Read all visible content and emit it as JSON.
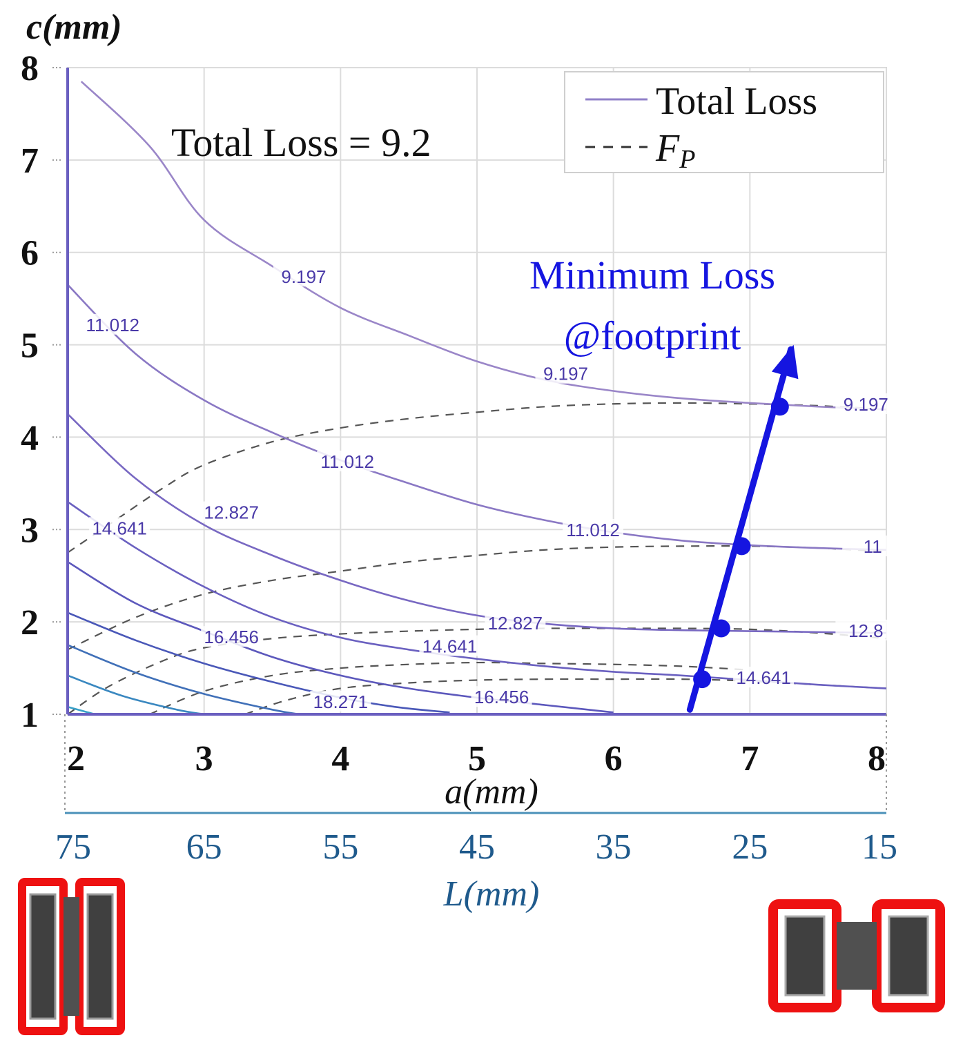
{
  "chart_data": {
    "type": "line",
    "title": "",
    "xlabel": "a(mm)",
    "ylabel": "c(mm)",
    "xlim": [
      2,
      8
    ],
    "ylim": [
      1,
      8
    ],
    "xticks": [
      "2",
      "3",
      "4",
      "5",
      "6",
      "7",
      "8"
    ],
    "yticks": [
      "1",
      "2",
      "3",
      "4",
      "5",
      "6",
      "7",
      "8"
    ],
    "secondary_xaxis": {
      "label": "L(mm)",
      "ticks": [
        "75",
        "65",
        "55",
        "45",
        "35",
        "25",
        "15"
      ]
    },
    "grid": true,
    "legend": {
      "position": "top-right",
      "entries": [
        {
          "label": "Total Loss",
          "style": "solid",
          "color": "#9080c8"
        },
        {
          "label": "F",
          "subscript": "P",
          "style": "dashed",
          "color": "#444444"
        }
      ]
    },
    "annotation": "Total Loss = 9.2",
    "highlight": {
      "line1": "Minimum Loss",
      "line2": "@footprint",
      "color": "#1515e0",
      "points": [
        {
          "x": 6.65,
          "y": 1.38,
          "label": "14.641"
        },
        {
          "x": 6.79,
          "y": 1.93,
          "label": "12.8"
        },
        {
          "x": 6.94,
          "y": 2.82,
          "label": "11"
        },
        {
          "x": 7.22,
          "y": 4.33,
          "label": "9.197"
        }
      ]
    },
    "contours": [
      {
        "level": "9.197",
        "color": "#9a86c8",
        "points": [
          [
            2.1,
            7.85
          ],
          [
            2.6,
            7.15
          ],
          [
            3.0,
            6.35
          ],
          [
            3.5,
            5.85
          ],
          [
            4.0,
            5.4
          ],
          [
            4.5,
            5.1
          ],
          [
            5.0,
            4.82
          ],
          [
            5.5,
            4.62
          ],
          [
            6.0,
            4.5
          ],
          [
            6.5,
            4.42
          ],
          [
            7.0,
            4.37
          ],
          [
            7.5,
            4.33
          ],
          [
            8.0,
            4.3
          ]
        ],
        "labels": [
          {
            "x": 3.73,
            "y": 5.72,
            "text": "9.197"
          },
          {
            "x": 5.65,
            "y": 4.67,
            "text": "9.197"
          },
          {
            "x": 7.85,
            "y": 4.34,
            "text": "9.197"
          }
        ]
      },
      {
        "level": "11.012",
        "color": "#8a78c4",
        "points": [
          [
            2.0,
            5.65
          ],
          [
            2.5,
            4.9
          ],
          [
            3.0,
            4.4
          ],
          [
            3.5,
            4.05
          ],
          [
            4.0,
            3.75
          ],
          [
            4.5,
            3.5
          ],
          [
            5.0,
            3.27
          ],
          [
            5.5,
            3.1
          ],
          [
            6.0,
            2.97
          ],
          [
            6.5,
            2.88
          ],
          [
            7.0,
            2.83
          ],
          [
            7.5,
            2.8
          ],
          [
            8.0,
            2.78
          ]
        ],
        "labels": [
          {
            "x": 2.33,
            "y": 5.2,
            "text": "11.012"
          },
          {
            "x": 4.05,
            "y": 3.72,
            "text": "11.012"
          },
          {
            "x": 5.85,
            "y": 2.98,
            "text": "11.012"
          },
          {
            "x": 7.9,
            "y": 2.8,
            "text": "11"
          }
        ]
      },
      {
        "level": "12.827",
        "color": "#7868c2",
        "points": [
          [
            2.0,
            4.25
          ],
          [
            2.5,
            3.55
          ],
          [
            3.0,
            3.05
          ],
          [
            3.5,
            2.72
          ],
          [
            4.0,
            2.45
          ],
          [
            4.5,
            2.23
          ],
          [
            5.0,
            2.07
          ],
          [
            5.5,
            1.98
          ],
          [
            6.0,
            1.93
          ],
          [
            6.5,
            1.91
          ],
          [
            7.0,
            1.9
          ],
          [
            7.5,
            1.89
          ],
          [
            8.0,
            1.88
          ]
        ],
        "labels": [
          {
            "x": 3.2,
            "y": 3.17,
            "text": "12.827"
          },
          {
            "x": 5.28,
            "y": 1.97,
            "text": "12.827"
          },
          {
            "x": 7.85,
            "y": 1.89,
            "text": "12.8"
          }
        ]
      },
      {
        "level": "14.641",
        "color": "#6a60c0",
        "points": [
          [
            2.0,
            3.3
          ],
          [
            2.5,
            2.8
          ],
          [
            3.0,
            2.38
          ],
          [
            3.5,
            2.05
          ],
          [
            4.0,
            1.83
          ],
          [
            4.5,
            1.7
          ],
          [
            5.0,
            1.6
          ],
          [
            5.5,
            1.52
          ],
          [
            6.0,
            1.46
          ],
          [
            6.5,
            1.42
          ],
          [
            7.0,
            1.37
          ],
          [
            7.5,
            1.32
          ],
          [
            8.0,
            1.28
          ]
        ],
        "labels": [
          {
            "x": 2.38,
            "y": 3.0,
            "text": "14.641"
          },
          {
            "x": 4.8,
            "y": 1.72,
            "text": "14.641"
          },
          {
            "x": 7.1,
            "y": 1.38,
            "text": "14.641"
          }
        ]
      },
      {
        "level": "16.456",
        "color": "#5c58bc",
        "points": [
          [
            2.0,
            2.65
          ],
          [
            2.5,
            2.2
          ],
          [
            3.0,
            1.9
          ],
          [
            3.5,
            1.62
          ],
          [
            4.0,
            1.42
          ],
          [
            4.5,
            1.28
          ],
          [
            5.0,
            1.18
          ],
          [
            5.5,
            1.1
          ],
          [
            6.0,
            1.02
          ]
        ],
        "labels": [
          {
            "x": 3.2,
            "y": 1.82,
            "text": "16.456"
          },
          {
            "x": 5.18,
            "y": 1.17,
            "text": "16.456"
          }
        ]
      },
      {
        "level": "18.271",
        "color": "#4a58b8",
        "points": [
          [
            2.0,
            2.1
          ],
          [
            2.5,
            1.8
          ],
          [
            3.0,
            1.55
          ],
          [
            3.5,
            1.35
          ],
          [
            4.0,
            1.18
          ],
          [
            4.4,
            1.08
          ],
          [
            4.8,
            1.02
          ]
        ],
        "labels": [
          {
            "x": 4.0,
            "y": 1.12,
            "text": "18.271"
          }
        ]
      },
      {
        "level": "",
        "color": "#4070b8",
        "points": [
          [
            2.0,
            1.75
          ],
          [
            2.5,
            1.45
          ],
          [
            3.0,
            1.22
          ],
          [
            3.5,
            1.05
          ],
          [
            3.7,
            1.0
          ]
        ],
        "labels": []
      },
      {
        "level": "",
        "color": "#3a88c0",
        "points": [
          [
            2.0,
            1.42
          ],
          [
            2.4,
            1.2
          ],
          [
            2.8,
            1.05
          ],
          [
            3.0,
            1.0
          ]
        ],
        "labels": []
      },
      {
        "level": "",
        "color": "#38a0c8",
        "points": [
          [
            2.0,
            1.08
          ],
          [
            2.2,
            1.0
          ]
        ],
        "labels": []
      }
    ],
    "fp_curves": [
      {
        "points": [
          [
            2.0,
            2.75
          ],
          [
            2.3,
            3.05
          ],
          [
            2.7,
            3.45
          ],
          [
            3.0,
            3.7
          ],
          [
            3.5,
            3.95
          ],
          [
            4.0,
            4.1
          ],
          [
            4.5,
            4.2
          ],
          [
            5.0,
            4.27
          ],
          [
            5.5,
            4.33
          ],
          [
            6.0,
            4.36
          ],
          [
            6.5,
            4.37
          ],
          [
            7.0,
            4.36
          ],
          [
            7.5,
            4.34
          ],
          [
            8.0,
            4.3
          ]
        ]
      },
      {
        "points": [
          [
            2.0,
            1.7
          ],
          [
            2.5,
            2.05
          ],
          [
            3.0,
            2.3
          ],
          [
            3.5,
            2.45
          ],
          [
            4.0,
            2.55
          ],
          [
            4.5,
            2.65
          ],
          [
            5.0,
            2.72
          ],
          [
            5.5,
            2.78
          ],
          [
            6.0,
            2.81
          ],
          [
            6.5,
            2.82
          ],
          [
            7.0,
            2.82
          ],
          [
            7.5,
            2.8
          ],
          [
            8.0,
            2.76
          ]
        ]
      },
      {
        "points": [
          [
            2.0,
            1.0
          ],
          [
            2.3,
            1.3
          ],
          [
            2.7,
            1.58
          ],
          [
            3.0,
            1.72
          ],
          [
            3.5,
            1.82
          ],
          [
            4.0,
            1.87
          ],
          [
            4.5,
            1.9
          ],
          [
            5.0,
            1.92
          ],
          [
            5.5,
            1.93
          ],
          [
            6.0,
            1.93
          ],
          [
            6.5,
            1.93
          ],
          [
            7.0,
            1.92
          ],
          [
            7.5,
            1.88
          ],
          [
            8.0,
            1.82
          ]
        ]
      },
      {
        "points": [
          [
            2.6,
            1.0
          ],
          [
            3.0,
            1.25
          ],
          [
            3.5,
            1.42
          ],
          [
            4.0,
            1.5
          ],
          [
            4.5,
            1.54
          ],
          [
            5.0,
            1.56
          ],
          [
            5.5,
            1.55
          ],
          [
            6.0,
            1.54
          ],
          [
            6.5,
            1.52
          ],
          [
            7.0,
            1.48
          ]
        ]
      },
      {
        "points": [
          [
            3.3,
            1.0
          ],
          [
            3.6,
            1.15
          ],
          [
            4.0,
            1.28
          ],
          [
            4.5,
            1.34
          ],
          [
            5.0,
            1.37
          ],
          [
            5.5,
            1.38
          ],
          [
            6.0,
            1.38
          ],
          [
            6.5,
            1.38
          ],
          [
            7.0,
            1.36
          ],
          [
            7.5,
            1.32
          ],
          [
            8.0,
            1.28
          ]
        ]
      }
    ]
  }
}
